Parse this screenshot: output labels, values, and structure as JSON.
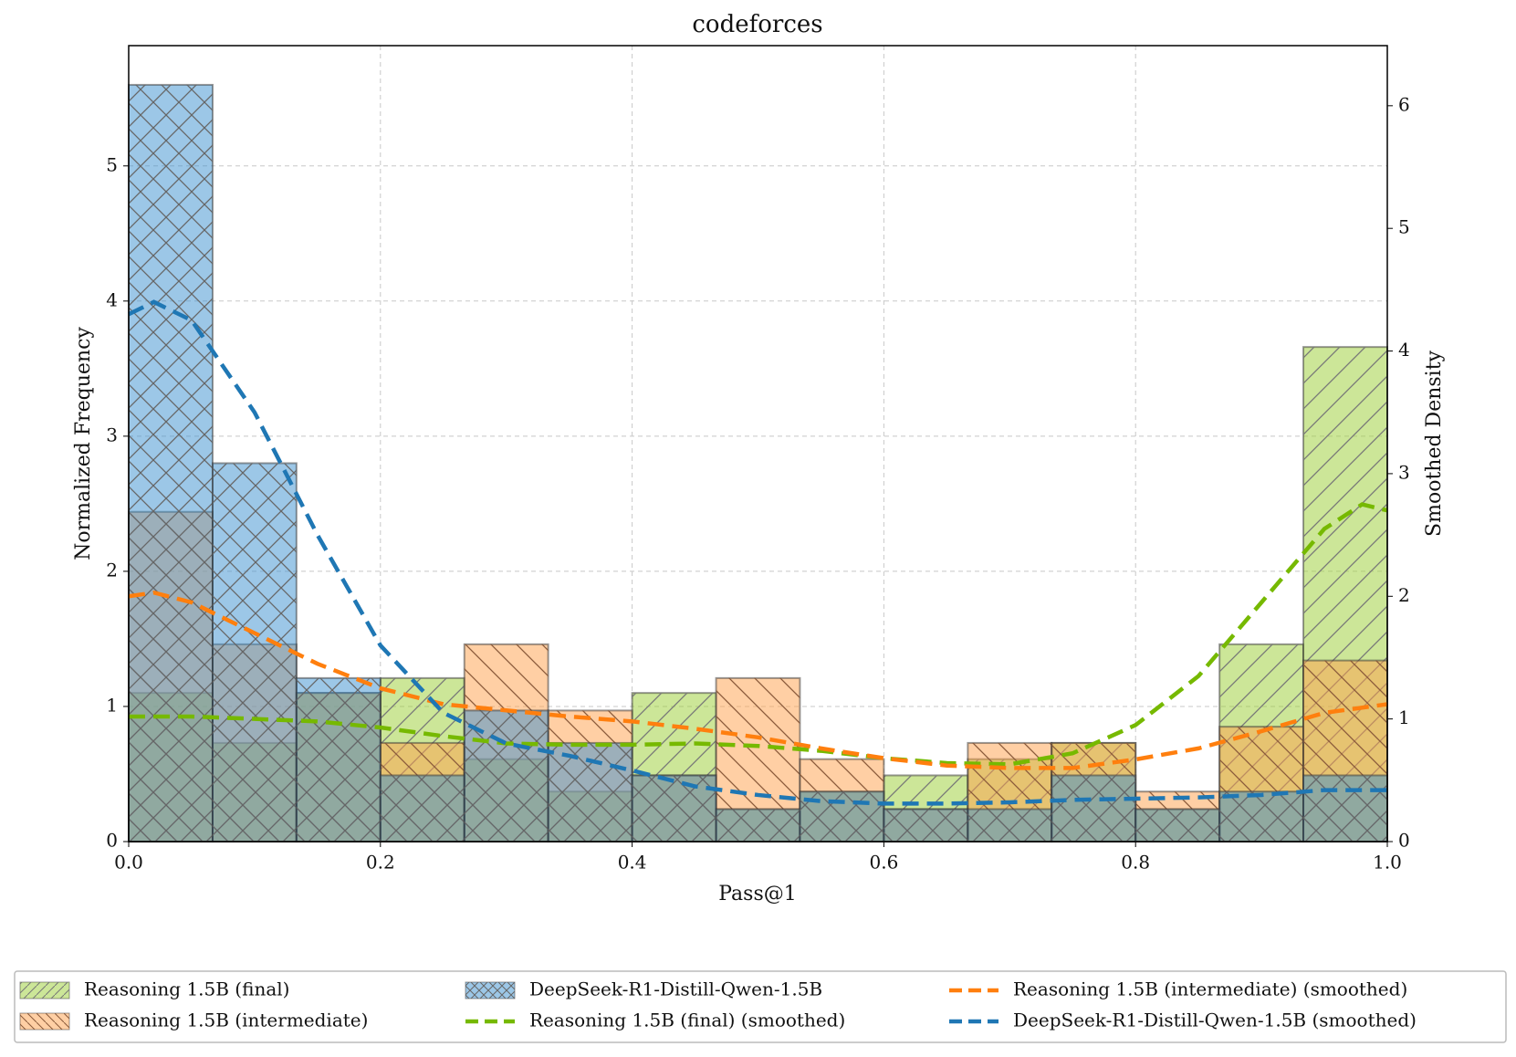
{
  "chart_data": {
    "type": "histogram",
    "title": "codeforces",
    "xlabel": "Pass@1",
    "ylabel": "Normalized Frequency",
    "y2label": "Smoothed Density",
    "bins": [
      0,
      0.0667,
      0.1333,
      0.2,
      0.2667,
      0.3333,
      0.4,
      0.4667,
      0.5333,
      0.6,
      0.6667,
      0.7333,
      0.8,
      0.8667,
      0.9333,
      1
    ],
    "xlim": [
      0,
      1
    ],
    "xticks": [
      {
        "value": 0,
        "label": "0.0"
      },
      {
        "value": 0.2,
        "label": "0.2"
      },
      {
        "value": 0.4,
        "label": "0.4"
      },
      {
        "value": 0.6,
        "label": "0.6"
      },
      {
        "value": 0.8,
        "label": "0.8"
      },
      {
        "value": 1,
        "label": "1.0"
      }
    ],
    "ylim": [
      0,
      5.89
    ],
    "yticks": [
      0,
      1,
      2,
      3,
      4,
      5
    ],
    "y2lim": [
      0,
      6.49
    ],
    "y2ticks": [
      0,
      1,
      2,
      3,
      4,
      5,
      6
    ],
    "grid": true,
    "legend": "bottom",
    "series": [
      {
        "name": "Reasoning 1.5B (final)",
        "color": "#9acd32",
        "hatch": "/",
        "values": [
          1.1,
          0.73,
          1.1,
          1.21,
          0.61,
          0.37,
          1.1,
          0.24,
          0.37,
          0.49,
          0.61,
          0.73,
          0.24,
          1.46,
          3.66
        ]
      },
      {
        "name": "Reasoning 1.5B (intermediate)",
        "color": "#ff9f4a",
        "hatch": "\\",
        "values": [
          2.44,
          1.46,
          1.1,
          0.73,
          1.46,
          0.97,
          0.49,
          1.21,
          0.61,
          0.24,
          0.73,
          0.73,
          0.37,
          0.85,
          1.34
        ]
      },
      {
        "name": "DeepSeek-R1-Distill-Qwen-1.5B",
        "color": "#3a8fd0",
        "hatch": "x",
        "values": [
          5.6,
          2.8,
          1.21,
          0.49,
          0.97,
          0.73,
          0.49,
          0.24,
          0.37,
          0.24,
          0.24,
          0.49,
          0.24,
          0.37,
          0.49
        ]
      },
      {
        "name": "Reasoning 1.5B (final) (smoothed)",
        "color": "#76b900",
        "axis": "y2",
        "type": "line",
        "x": [
          0,
          0.05,
          0.1,
          0.15,
          0.2,
          0.25,
          0.3,
          0.35,
          0.4,
          0.45,
          0.5,
          0.55,
          0.6,
          0.65,
          0.7,
          0.75,
          0.8,
          0.85,
          0.9,
          0.95,
          0.98,
          1
        ],
        "values": [
          1.02,
          1.02,
          1.0,
          0.98,
          0.93,
          0.86,
          0.8,
          0.79,
          0.79,
          0.8,
          0.78,
          0.74,
          0.68,
          0.64,
          0.63,
          0.72,
          0.95,
          1.35,
          1.95,
          2.55,
          2.75,
          2.7
        ]
      },
      {
        "name": "Reasoning 1.5B (intermediate) (smoothed)",
        "color": "#ff7f0e",
        "axis": "y2",
        "type": "line",
        "x": [
          0,
          0.02,
          0.05,
          0.1,
          0.15,
          0.2,
          0.25,
          0.3,
          0.35,
          0.4,
          0.45,
          0.5,
          0.55,
          0.6,
          0.65,
          0.7,
          0.75,
          0.8,
          0.85,
          0.9,
          0.95,
          1
        ],
        "values": [
          2.0,
          2.03,
          1.95,
          1.7,
          1.45,
          1.25,
          1.12,
          1.07,
          1.02,
          0.98,
          0.92,
          0.85,
          0.76,
          0.68,
          0.62,
          0.6,
          0.6,
          0.67,
          0.76,
          0.9,
          1.05,
          1.12
        ]
      },
      {
        "name": "DeepSeek-R1-Distill-Qwen-1.5B (smoothed)",
        "color": "#1f77b4",
        "axis": "y2",
        "type": "line",
        "x": [
          0,
          0.02,
          0.05,
          0.1,
          0.15,
          0.2,
          0.25,
          0.3,
          0.35,
          0.4,
          0.45,
          0.5,
          0.55,
          0.6,
          0.65,
          0.7,
          0.75,
          0.8,
          0.85,
          0.9,
          0.95,
          1
        ],
        "values": [
          4.3,
          4.4,
          4.25,
          3.5,
          2.5,
          1.6,
          1.05,
          0.8,
          0.7,
          0.58,
          0.45,
          0.38,
          0.33,
          0.31,
          0.31,
          0.32,
          0.34,
          0.35,
          0.36,
          0.38,
          0.42,
          0.42
        ]
      }
    ]
  }
}
